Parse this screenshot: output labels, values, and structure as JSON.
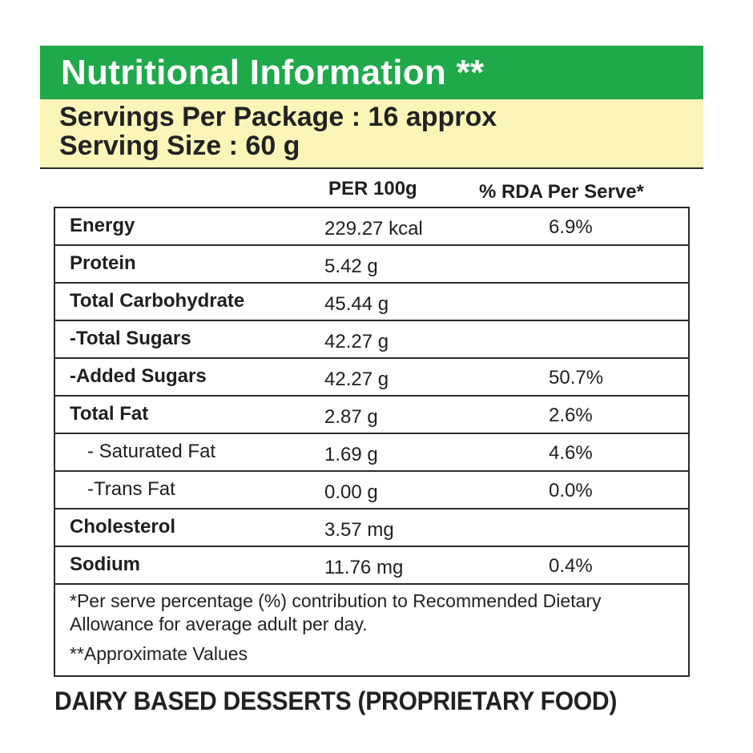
{
  "label": {
    "title": "Nutritional Information **",
    "servings_per_package": "Servings Per Package : 16 approx",
    "serving_size": "Serving Size : 60 g",
    "colors": {
      "title_bar": "#1fa94a",
      "title_text": "#ffffff",
      "serving_box": "#fbf6b8"
    }
  },
  "table": {
    "headers": {
      "per_100g": "PER 100g",
      "rda": "% RDA Per Serve*"
    },
    "rows": [
      {
        "name": "Energy",
        "value": "229.27 kcal",
        "rda": "6.9%"
      },
      {
        "name": "Protein",
        "value": "5.42 g",
        "rda": ""
      },
      {
        "name": "Total Carbohydrate",
        "value": "45.44 g",
        "rda": ""
      },
      {
        "name": "-Total Sugars",
        "value": "42.27 g",
        "rda": ""
      },
      {
        "name": "-Added Sugars",
        "value": "42.27 g",
        "rda": "50.7%"
      },
      {
        "name": "Total Fat",
        "value": "2.87 g",
        "rda": "2.6%"
      },
      {
        "name": "- Saturated Fat",
        "value": "1.69 g",
        "rda": "4.6%"
      },
      {
        "name": "-Trans Fat",
        "value": "0.00 g",
        "rda": "0.0%"
      },
      {
        "name": "Cholesterol",
        "value": "3.57 mg",
        "rda": ""
      },
      {
        "name": "Sodium",
        "value": "11.76 mg",
        "rda": "0.4%"
      }
    ],
    "note_rda": "*Per serve percentage (%) contribution to Recommended Dietary Allowance for average adult per day.",
    "note_approx": "**Approximate Values"
  },
  "category": "DAIRY BASED DESSERTS (PROPRIETARY FOOD)"
}
